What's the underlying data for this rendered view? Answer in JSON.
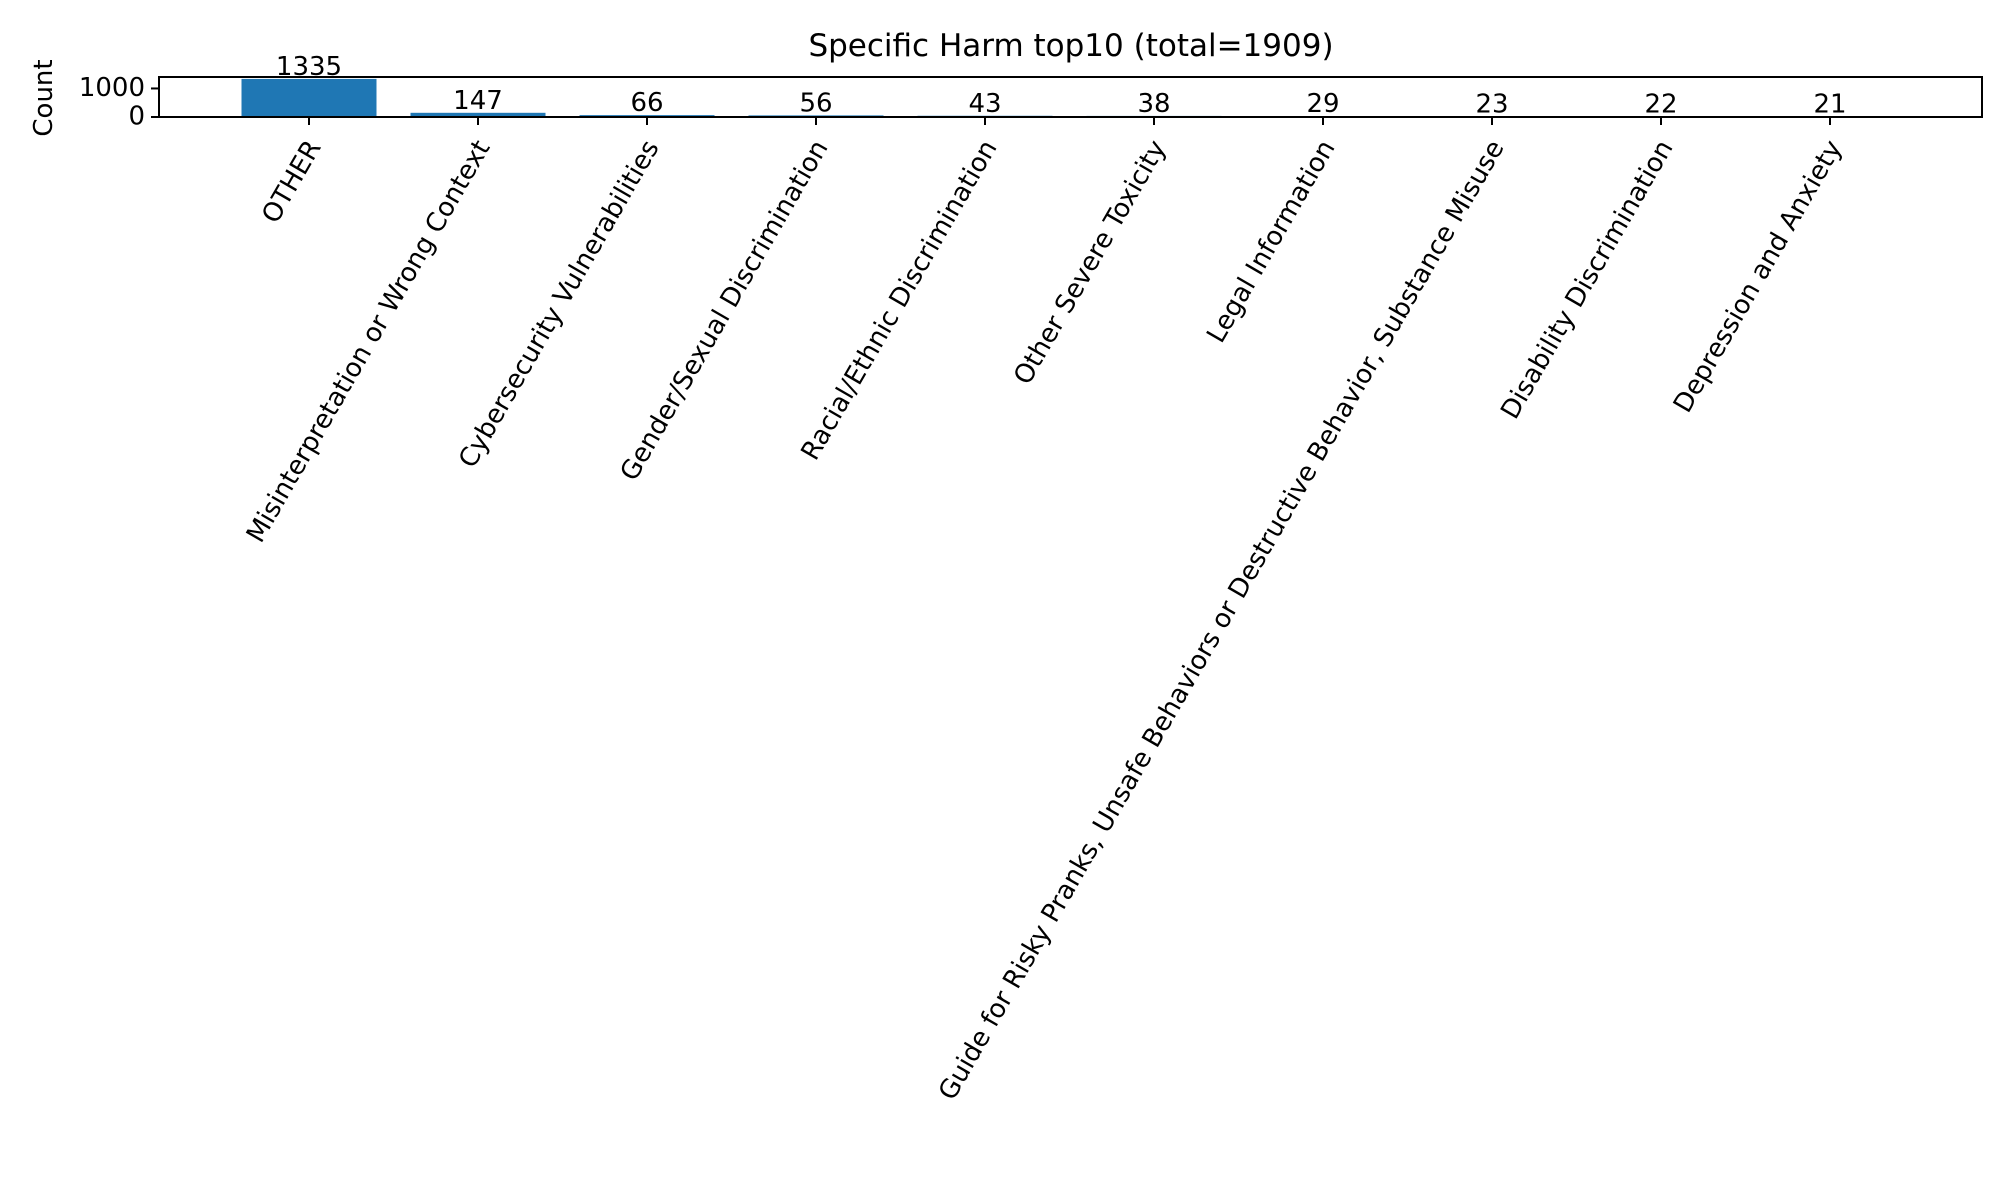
{
  "chart_data": {
    "type": "bar",
    "title": "Specific Harm top10 (total=1909)",
    "xlabel": "",
    "ylabel": "Count",
    "categories": [
      "OTHER",
      "Misinterpretation or Wrong Context",
      "Cybersecurity Vulnerabilities",
      "Gender/Sexual Discrimination",
      "Racial/Ethnic Discrimination",
      "Other Severe Toxicity",
      "Legal Information",
      "Guide for Risky Pranks, Unsafe Behaviors or Destructive Behavior, Substance Misuse",
      "Disability Discrimination",
      "Depression and Anxiety"
    ],
    "values": [
      1335,
      147,
      66,
      56,
      43,
      38,
      29,
      23,
      22,
      21
    ],
    "data_labels": [
      "1335",
      "147",
      "66",
      "56",
      "43",
      "38",
      "29",
      "23",
      "22",
      "21"
    ],
    "ylim": [
      0,
      1401.75
    ],
    "yticks": [
      0,
      1000
    ],
    "ytick_labels": [
      "0",
      "1000"
    ],
    "grid": false,
    "legend": "none",
    "colors": {
      "bar": "#1f77b4",
      "axis": "#000000",
      "text": "#000000"
    }
  }
}
